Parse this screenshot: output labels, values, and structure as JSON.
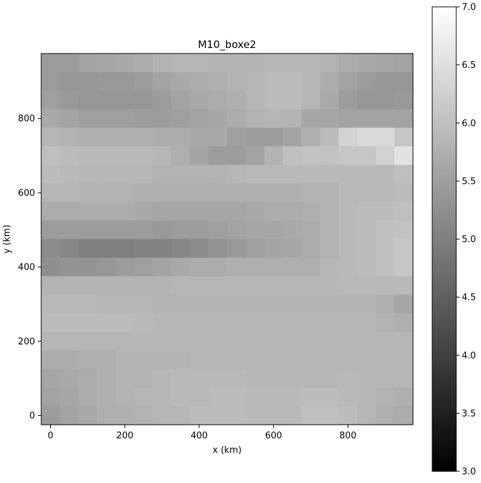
{
  "chart_data": {
    "type": "heatmap",
    "title": "M10_boxe2",
    "xlabel": "x (km)",
    "ylabel": "y (km)",
    "xlim": [
      -25,
      975
    ],
    "ylim": [
      -25,
      975
    ],
    "xticks": [
      0,
      200,
      400,
      600,
      800
    ],
    "yticks": [
      0,
      200,
      400,
      600,
      800
    ],
    "cell_size": 50,
    "x_centers": [
      0,
      50,
      100,
      150,
      200,
      250,
      300,
      350,
      400,
      450,
      500,
      550,
      600,
      650,
      700,
      750,
      800,
      850,
      900,
      950
    ],
    "y_centers": [
      950,
      900,
      850,
      800,
      750,
      700,
      650,
      600,
      550,
      500,
      450,
      400,
      350,
      300,
      250,
      200,
      150,
      100,
      50,
      0
    ],
    "values": [
      [
        5.45,
        5.45,
        5.55,
        5.6,
        5.65,
        5.7,
        5.8,
        5.85,
        5.85,
        5.8,
        5.8,
        5.8,
        5.85,
        5.85,
        5.85,
        5.8,
        5.7,
        5.65,
        5.6,
        5.55
      ],
      [
        5.45,
        5.35,
        5.35,
        5.4,
        5.4,
        5.45,
        5.55,
        5.65,
        5.7,
        5.75,
        5.8,
        5.85,
        5.95,
        5.95,
        5.85,
        5.7,
        5.55,
        5.45,
        5.35,
        5.35
      ],
      [
        5.5,
        5.4,
        5.35,
        5.35,
        5.35,
        5.35,
        5.45,
        5.55,
        5.65,
        5.7,
        5.75,
        5.85,
        5.95,
        5.95,
        5.85,
        5.65,
        5.45,
        5.35,
        5.35,
        5.4
      ],
      [
        5.65,
        5.55,
        5.5,
        5.5,
        5.5,
        5.45,
        5.45,
        5.5,
        5.55,
        5.6,
        5.7,
        5.8,
        5.85,
        5.8,
        5.6,
        5.6,
        5.55,
        5.55,
        5.55,
        5.55
      ],
      [
        5.85,
        5.8,
        5.75,
        5.75,
        5.75,
        5.75,
        5.7,
        5.7,
        5.65,
        5.65,
        5.5,
        5.45,
        5.45,
        5.55,
        5.75,
        5.95,
        6.3,
        6.4,
        6.4,
        6.1
      ],
      [
        6.0,
        5.95,
        5.9,
        5.9,
        5.9,
        5.9,
        5.85,
        5.75,
        5.55,
        5.45,
        5.45,
        5.55,
        5.8,
        6.0,
        6.05,
        6.05,
        6.1,
        6.1,
        6.3,
        6.55
      ],
      [
        5.95,
        5.9,
        5.85,
        5.85,
        5.85,
        5.85,
        5.8,
        5.8,
        5.8,
        5.8,
        5.85,
        5.9,
        5.9,
        5.9,
        5.9,
        5.9,
        5.9,
        5.9,
        5.9,
        6.0
      ],
      [
        5.85,
        5.85,
        5.8,
        5.8,
        5.8,
        5.75,
        5.75,
        5.75,
        5.75,
        5.75,
        5.75,
        5.75,
        5.75,
        5.75,
        5.8,
        5.8,
        5.9,
        5.9,
        5.9,
        5.95
      ],
      [
        5.7,
        5.7,
        5.7,
        5.7,
        5.7,
        5.65,
        5.6,
        5.6,
        5.6,
        5.6,
        5.6,
        5.65,
        5.7,
        5.7,
        5.75,
        5.8,
        5.9,
        5.95,
        5.95,
        6.0
      ],
      [
        5.45,
        5.45,
        5.45,
        5.45,
        5.45,
        5.45,
        5.4,
        5.45,
        5.45,
        5.5,
        5.55,
        5.6,
        5.6,
        5.65,
        5.7,
        5.8,
        5.9,
        5.95,
        6.0,
        6.05
      ],
      [
        5.2,
        5.1,
        5.0,
        5.0,
        5.0,
        5.05,
        5.05,
        5.1,
        5.2,
        5.3,
        5.4,
        5.5,
        5.55,
        5.6,
        5.7,
        5.8,
        5.9,
        5.95,
        6.0,
        6.1
      ],
      [
        5.25,
        5.3,
        5.3,
        5.35,
        5.45,
        5.5,
        5.55,
        5.65,
        5.7,
        5.7,
        5.75,
        5.75,
        5.75,
        5.75,
        5.75,
        5.85,
        5.9,
        5.95,
        6.0,
        6.1
      ],
      [
        5.8,
        5.8,
        5.8,
        5.8,
        5.8,
        5.8,
        5.8,
        5.85,
        5.85,
        5.85,
        5.85,
        5.85,
        5.85,
        5.85,
        5.85,
        5.85,
        5.9,
        5.9,
        5.9,
        5.9
      ],
      [
        5.9,
        5.9,
        5.9,
        5.85,
        5.85,
        5.85,
        5.8,
        5.8,
        5.8,
        5.8,
        5.8,
        5.8,
        5.8,
        5.8,
        5.8,
        5.8,
        5.8,
        5.8,
        5.75,
        5.6
      ],
      [
        5.95,
        5.95,
        5.95,
        5.95,
        5.95,
        5.9,
        5.85,
        5.85,
        5.85,
        5.85,
        5.85,
        5.85,
        5.85,
        5.85,
        5.85,
        5.85,
        5.85,
        5.85,
        5.8,
        5.75
      ],
      [
        5.85,
        5.85,
        5.85,
        5.85,
        5.85,
        5.85,
        5.85,
        5.85,
        5.85,
        5.85,
        5.85,
        5.85,
        5.85,
        5.85,
        5.85,
        5.85,
        5.85,
        5.85,
        5.85,
        5.85
      ],
      [
        5.7,
        5.7,
        5.75,
        5.75,
        5.8,
        5.8,
        5.8,
        5.8,
        5.85,
        5.85,
        5.85,
        5.85,
        5.85,
        5.85,
        5.85,
        5.85,
        5.85,
        5.85,
        5.85,
        5.85
      ],
      [
        5.6,
        5.65,
        5.7,
        5.75,
        5.8,
        5.8,
        5.85,
        5.9,
        5.9,
        5.9,
        5.9,
        5.85,
        5.85,
        5.85,
        5.85,
        5.85,
        5.9,
        5.85,
        5.85,
        5.85
      ],
      [
        5.55,
        5.6,
        5.7,
        5.75,
        5.8,
        5.85,
        5.85,
        5.9,
        5.9,
        5.95,
        5.95,
        5.9,
        5.9,
        5.9,
        5.95,
        5.95,
        5.9,
        5.85,
        5.8,
        5.75
      ],
      [
        5.45,
        5.55,
        5.65,
        5.75,
        5.75,
        5.8,
        5.85,
        5.85,
        5.95,
        5.95,
        5.95,
        5.9,
        5.9,
        5.9,
        6.0,
        6.0,
        5.95,
        5.85,
        5.75,
        5.7
      ]
    ],
    "colormap": "gray",
    "colorbar": {
      "vmin": 3.0,
      "vmax": 7.0,
      "ticks": [
        "3.0",
        "3.5",
        "4.0",
        "4.5",
        "5.0",
        "5.5",
        "6.0",
        "6.5",
        "7.0"
      ]
    },
    "grid": false,
    "legend": "none"
  }
}
